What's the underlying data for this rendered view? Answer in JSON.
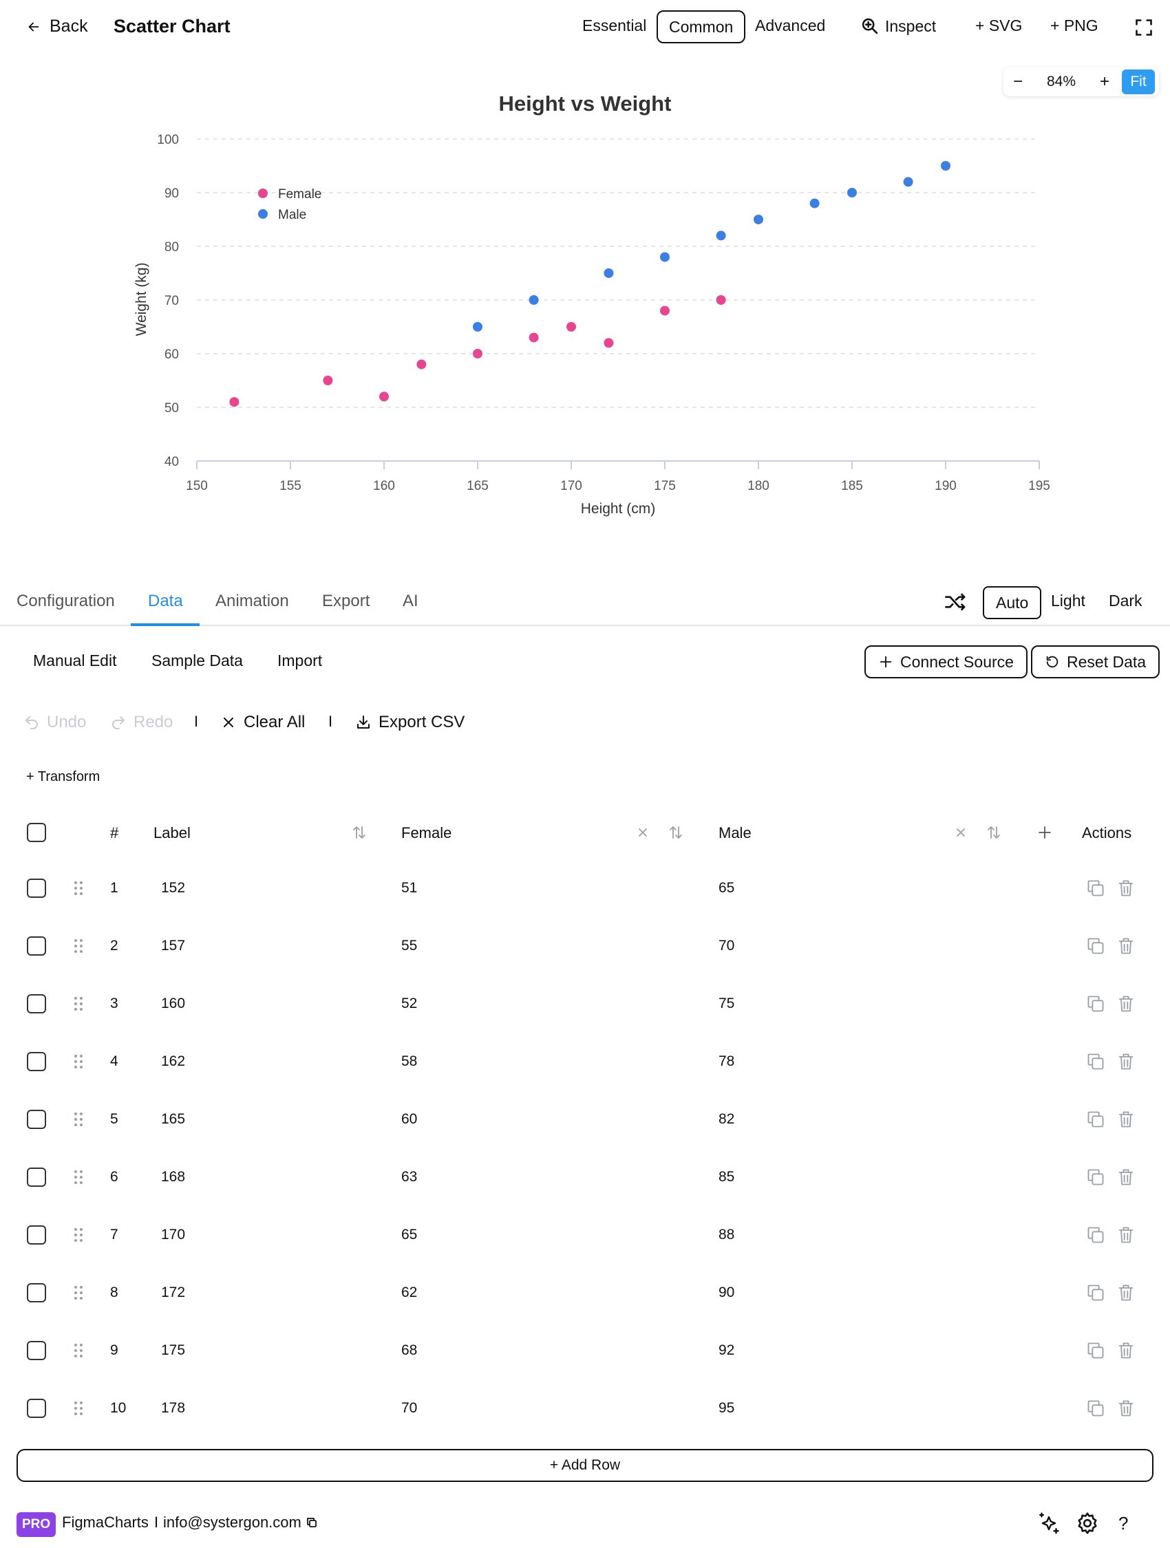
{
  "topbar": {
    "back_label": "Back",
    "title": "Scatter Chart",
    "modes": [
      "Essential",
      "Common",
      "Advanced"
    ],
    "active_mode": "Common",
    "inspect_label": "Inspect",
    "svg_label": "+ SVG",
    "png_label": "+ PNG"
  },
  "zoom": {
    "minus": "−",
    "value": "84%",
    "plus": "+",
    "fit": "Fit"
  },
  "chart_data": {
    "type": "scatter",
    "title": "Height vs Weight",
    "xlabel": "Height (cm)",
    "ylabel": "Weight (kg)",
    "xlim": [
      150,
      195
    ],
    "ylim": [
      40,
      100
    ],
    "xticks": [
      150,
      155,
      160,
      165,
      170,
      175,
      180,
      185,
      190,
      195
    ],
    "yticks": [
      40,
      50,
      60,
      70,
      80,
      90,
      100
    ],
    "grid": "horizontal dashed",
    "legend_position": "top-left",
    "series": [
      {
        "name": "Female",
        "color": "#e8448f",
        "points": [
          [
            152,
            51
          ],
          [
            157,
            55
          ],
          [
            160,
            52
          ],
          [
            162,
            58
          ],
          [
            165,
            60
          ],
          [
            168,
            63
          ],
          [
            170,
            65
          ],
          [
            172,
            62
          ],
          [
            175,
            68
          ],
          [
            178,
            70
          ]
        ]
      },
      {
        "name": "Male",
        "color": "#3b7fe6",
        "points": [
          [
            165,
            65
          ],
          [
            168,
            70
          ],
          [
            172,
            75
          ],
          [
            175,
            78
          ],
          [
            178,
            82
          ],
          [
            180,
            85
          ],
          [
            183,
            88
          ],
          [
            185,
            90
          ],
          [
            188,
            92
          ],
          [
            190,
            95
          ]
        ]
      }
    ]
  },
  "tabs": {
    "items": [
      "Configuration",
      "Data",
      "Animation",
      "Export",
      "AI"
    ],
    "active": "Data"
  },
  "theme": {
    "items": [
      "Auto",
      "Light",
      "Dark"
    ],
    "active": "Auto"
  },
  "subnav": {
    "items": [
      "Manual Edit",
      "Sample Data",
      "Import"
    ],
    "connect_source": "Connect Source",
    "reset_data": "Reset Data"
  },
  "toolbar": {
    "undo": "Undo",
    "redo": "Redo",
    "separator": "I",
    "clear_all": "Clear All",
    "export_csv": "Export CSV",
    "transform": "+ Transform"
  },
  "table": {
    "headers": {
      "index": "#",
      "label": "Label",
      "female": "Female",
      "male": "Male",
      "actions": "Actions"
    },
    "rows": [
      {
        "n": "1",
        "label": "152",
        "female": "51",
        "male": "65"
      },
      {
        "n": "2",
        "label": "157",
        "female": "55",
        "male": "70"
      },
      {
        "n": "3",
        "label": "160",
        "female": "52",
        "male": "75"
      },
      {
        "n": "4",
        "label": "162",
        "female": "58",
        "male": "78"
      },
      {
        "n": "5",
        "label": "165",
        "female": "60",
        "male": "82"
      },
      {
        "n": "6",
        "label": "168",
        "female": "63",
        "male": "85"
      },
      {
        "n": "7",
        "label": "170",
        "female": "65",
        "male": "88"
      },
      {
        "n": "8",
        "label": "172",
        "female": "62",
        "male": "90"
      },
      {
        "n": "9",
        "label": "175",
        "female": "68",
        "male": "92"
      },
      {
        "n": "10",
        "label": "178",
        "female": "70",
        "male": "95"
      }
    ],
    "add_row": "+ Add Row"
  },
  "footer": {
    "badge": "PRO",
    "brand": "FigmaCharts",
    "separator": "I",
    "email": "info@systergon.com",
    "help": "?"
  }
}
